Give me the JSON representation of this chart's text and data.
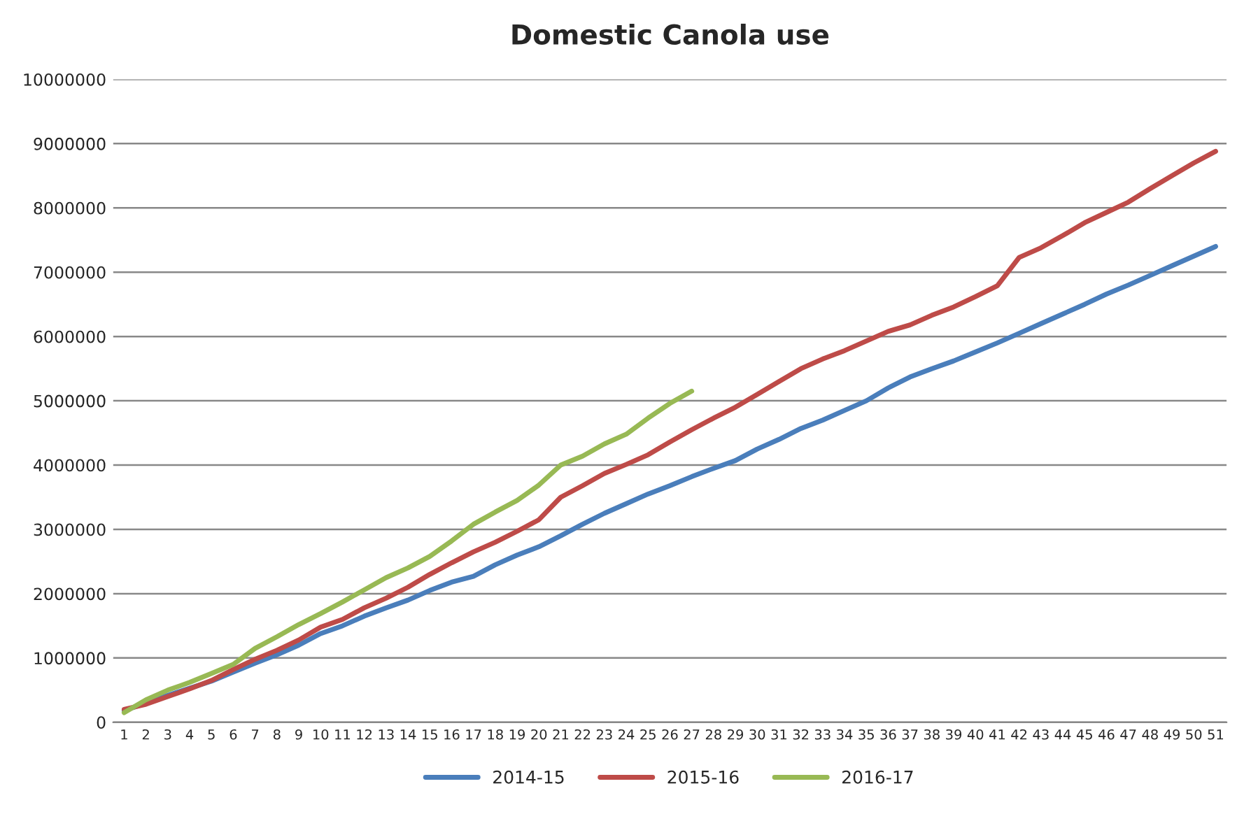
{
  "chart_data": {
    "type": "line",
    "title": "Domestic Canola use",
    "categories": [
      "1",
      "2",
      "3",
      "4",
      "5",
      "6",
      "7",
      "8",
      "9",
      "10",
      "11",
      "12",
      "13",
      "14",
      "15",
      "16",
      "17",
      "18",
      "19",
      "20",
      "21",
      "22",
      "23",
      "24",
      "25",
      "26",
      "27",
      "28",
      "29",
      "30",
      "31",
      "32",
      "33",
      "34",
      "35",
      "36",
      "37",
      "38",
      "39",
      "40",
      "41",
      "42",
      "43",
      "44",
      "45",
      "46",
      "47",
      "48",
      "49",
      "50",
      "51"
    ],
    "series": [
      {
        "name": "2014-15",
        "color": "#4a7ebb",
        "values": [
          180000,
          300000,
          420000,
          530000,
          640000,
          780000,
          920000,
          1050000,
          1200000,
          1380000,
          1500000,
          1650000,
          1780000,
          1900000,
          2050000,
          2180000,
          2270000,
          2450000,
          2600000,
          2730000,
          2900000,
          3080000,
          3250000,
          3400000,
          3550000,
          3680000,
          3820000,
          3950000,
          4070000,
          4250000,
          4400000,
          4570000,
          4700000,
          4850000,
          5000000,
          5200000,
          5370000,
          5500000,
          5620000,
          5760000,
          5900000,
          6050000,
          6200000,
          6350000,
          6500000,
          6660000,
          6800000,
          6950000,
          7100000,
          7250000,
          7400000
        ]
      },
      {
        "name": "2015-16",
        "color": "#be4b48",
        "values": [
          200000,
          280000,
          400000,
          520000,
          650000,
          820000,
          980000,
          1120000,
          1280000,
          1480000,
          1600000,
          1780000,
          1930000,
          2100000,
          2300000,
          2480000,
          2650000,
          2800000,
          2970000,
          3150000,
          3500000,
          3680000,
          3870000,
          4010000,
          4160000,
          4360000,
          4550000,
          4730000,
          4900000,
          5100000,
          5300000,
          5500000,
          5650000,
          5780000,
          5930000,
          6080000,
          6180000,
          6330000,
          6460000,
          6620000,
          6790000,
          7230000,
          7380000,
          7570000,
          7770000,
          7930000,
          8090000,
          8300000,
          8500000,
          8700000,
          8880000
        ]
      },
      {
        "name": "2016-17",
        "color": "#98b954",
        "values": [
          150000,
          350000,
          500000,
          620000,
          760000,
          900000,
          1150000,
          1330000,
          1520000,
          1690000,
          1870000,
          2060000,
          2250000,
          2400000,
          2580000,
          2820000,
          3080000,
          3270000,
          3450000,
          3690000,
          4000000,
          4140000,
          4330000,
          4480000,
          4730000,
          4960000,
          5150000,
          null,
          null,
          null,
          null,
          null,
          null,
          null,
          null,
          null,
          null,
          null,
          null,
          null,
          null,
          null,
          null,
          null,
          null,
          null,
          null,
          null,
          null,
          null,
          null
        ]
      }
    ],
    "ylim": [
      0,
      10000000
    ],
    "yticks": [
      0,
      1000000,
      2000000,
      3000000,
      4000000,
      5000000,
      6000000,
      7000000,
      8000000,
      9000000,
      10000000
    ],
    "grid": "y",
    "legend": "bottom",
    "marker": "none",
    "line_style": "solid"
  }
}
